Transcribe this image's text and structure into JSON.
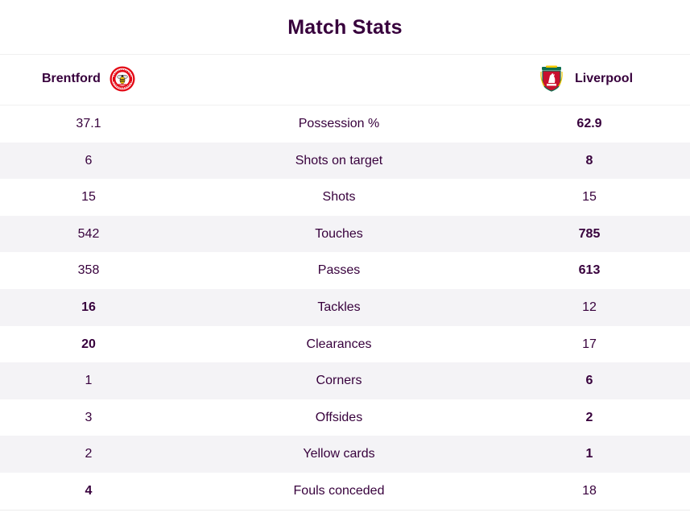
{
  "title": "Match Stats",
  "teams": {
    "home": {
      "name": "Brentford",
      "crest_icon": "brentford-bee-crest-icon",
      "color": "#e30613"
    },
    "away": {
      "name": "Liverpool",
      "crest_icon": "liverpool-liverbird-crest-icon",
      "color": "#c8102e"
    }
  },
  "stats": [
    {
      "label": "Possession %",
      "home": "37.1",
      "away": "62.9",
      "leader": "away"
    },
    {
      "label": "Shots on target",
      "home": "6",
      "away": "8",
      "leader": "away"
    },
    {
      "label": "Shots",
      "home": "15",
      "away": "15",
      "leader": "none"
    },
    {
      "label": "Touches",
      "home": "542",
      "away": "785",
      "leader": "away"
    },
    {
      "label": "Passes",
      "home": "358",
      "away": "613",
      "leader": "away"
    },
    {
      "label": "Tackles",
      "home": "16",
      "away": "12",
      "leader": "home"
    },
    {
      "label": "Clearances",
      "home": "20",
      "away": "17",
      "leader": "home"
    },
    {
      "label": "Corners",
      "home": "1",
      "away": "6",
      "leader": "away"
    },
    {
      "label": "Offsides",
      "home": "3",
      "away": "2",
      "leader": "away"
    },
    {
      "label": "Yellow cards",
      "home": "2",
      "away": "1",
      "leader": "away"
    },
    {
      "label": "Fouls conceded",
      "home": "4",
      "away": "18",
      "leader": "home"
    }
  ],
  "colors": {
    "text": "#37003c",
    "row_alt": "#f4f3f6",
    "divider": "#f0f0f0"
  }
}
